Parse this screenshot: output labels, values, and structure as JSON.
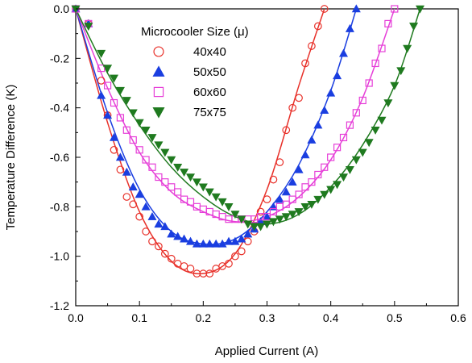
{
  "chart_data": {
    "type": "scatter",
    "xlabel": "Applied Current (A)",
    "ylabel": "Temperature Difference (K)",
    "xlim": [
      0.0,
      0.6
    ],
    "ylim": [
      -1.2,
      0.0
    ],
    "xticks": [
      "0.0",
      "0.1",
      "0.2",
      "0.3",
      "0.4",
      "0.5",
      "0.6"
    ],
    "yticks": [
      "0.0",
      "-0.2",
      "-0.4",
      "-0.6",
      "-0.8",
      "-1.0",
      "-1.2"
    ],
    "grid": false,
    "legend": {
      "title": "Microcooler Size (μ)",
      "placement": "top-center"
    },
    "series": [
      {
        "name": "40x40",
        "marker": "circle-open",
        "color": "#e8312a",
        "points": [
          [
            0.0,
            0.0
          ],
          [
            0.02,
            -0.06
          ],
          [
            0.04,
            -0.29
          ],
          [
            0.05,
            -0.43
          ],
          [
            0.06,
            -0.57
          ],
          [
            0.07,
            -0.65
          ],
          [
            0.08,
            -0.76
          ],
          [
            0.09,
            -0.79
          ],
          [
            0.1,
            -0.84
          ],
          [
            0.11,
            -0.9
          ],
          [
            0.12,
            -0.94
          ],
          [
            0.13,
            -0.96
          ],
          [
            0.14,
            -0.99
          ],
          [
            0.15,
            -1.01
          ],
          [
            0.16,
            -1.03
          ],
          [
            0.17,
            -1.04
          ],
          [
            0.18,
            -1.05
          ],
          [
            0.19,
            -1.07
          ],
          [
            0.2,
            -1.07
          ],
          [
            0.21,
            -1.07
          ],
          [
            0.22,
            -1.05
          ],
          [
            0.23,
            -1.04
          ],
          [
            0.24,
            -1.03
          ],
          [
            0.25,
            -1.0
          ],
          [
            0.26,
            -0.98
          ],
          [
            0.27,
            -0.94
          ],
          [
            0.28,
            -0.9
          ],
          [
            0.29,
            -0.82
          ],
          [
            0.3,
            -0.77
          ],
          [
            0.31,
            -0.69
          ],
          [
            0.32,
            -0.62
          ],
          [
            0.33,
            -0.49
          ],
          [
            0.34,
            -0.4
          ],
          [
            0.35,
            -0.36
          ],
          [
            0.36,
            -0.22
          ],
          [
            0.37,
            -0.15
          ],
          [
            0.38,
            -0.07
          ],
          [
            0.39,
            0.0
          ]
        ],
        "fit": [
          [
            0.0,
            0.0
          ],
          [
            0.05,
            -0.46
          ],
          [
            0.1,
            -0.82
          ],
          [
            0.15,
            -1.02
          ],
          [
            0.2,
            -1.07
          ],
          [
            0.25,
            -0.99
          ],
          [
            0.3,
            -0.73
          ],
          [
            0.35,
            -0.31
          ],
          [
            0.39,
            0.0
          ]
        ]
      },
      {
        "name": "50x50",
        "marker": "triangle-up",
        "color": "#1a3ee0",
        "points": [
          [
            0.0,
            0.0
          ],
          [
            0.02,
            -0.06
          ],
          [
            0.04,
            -0.35
          ],
          [
            0.05,
            -0.43
          ],
          [
            0.06,
            -0.52
          ],
          [
            0.07,
            -0.6
          ],
          [
            0.08,
            -0.66
          ],
          [
            0.09,
            -0.72
          ],
          [
            0.1,
            -0.75
          ],
          [
            0.11,
            -0.8
          ],
          [
            0.12,
            -0.84
          ],
          [
            0.13,
            -0.87
          ],
          [
            0.14,
            -0.88
          ],
          [
            0.15,
            -0.91
          ],
          [
            0.16,
            -0.92
          ],
          [
            0.17,
            -0.93
          ],
          [
            0.18,
            -0.94
          ],
          [
            0.19,
            -0.95
          ],
          [
            0.2,
            -0.95
          ],
          [
            0.21,
            -0.95
          ],
          [
            0.22,
            -0.95
          ],
          [
            0.23,
            -0.95
          ],
          [
            0.24,
            -0.94
          ],
          [
            0.25,
            -0.94
          ],
          [
            0.26,
            -0.93
          ],
          [
            0.27,
            -0.91
          ],
          [
            0.28,
            -0.89
          ],
          [
            0.29,
            -0.86
          ],
          [
            0.3,
            -0.84
          ],
          [
            0.31,
            -0.8
          ],
          [
            0.32,
            -0.77
          ],
          [
            0.33,
            -0.74
          ],
          [
            0.34,
            -0.7
          ],
          [
            0.35,
            -0.65
          ],
          [
            0.36,
            -0.59
          ],
          [
            0.37,
            -0.53
          ],
          [
            0.38,
            -0.47
          ],
          [
            0.39,
            -0.41
          ],
          [
            0.4,
            -0.34
          ],
          [
            0.41,
            -0.27
          ],
          [
            0.42,
            -0.18
          ],
          [
            0.43,
            -0.08
          ],
          [
            0.44,
            0.0
          ]
        ],
        "fit": [
          [
            0.0,
            0.0
          ],
          [
            0.05,
            -0.42
          ],
          [
            0.1,
            -0.73
          ],
          [
            0.15,
            -0.9
          ],
          [
            0.2,
            -0.95
          ],
          [
            0.25,
            -0.93
          ],
          [
            0.3,
            -0.82
          ],
          [
            0.35,
            -0.63
          ],
          [
            0.4,
            -0.33
          ],
          [
            0.44,
            0.0
          ]
        ]
      },
      {
        "name": "60x60",
        "marker": "square-open",
        "color": "#e63fd8",
        "points": [
          [
            0.0,
            0.0
          ],
          [
            0.02,
            -0.06
          ],
          [
            0.04,
            -0.24
          ],
          [
            0.05,
            -0.31
          ],
          [
            0.06,
            -0.38
          ],
          [
            0.07,
            -0.44
          ],
          [
            0.08,
            -0.49
          ],
          [
            0.09,
            -0.53
          ],
          [
            0.1,
            -0.57
          ],
          [
            0.11,
            -0.61
          ],
          [
            0.12,
            -0.64
          ],
          [
            0.13,
            -0.68
          ],
          [
            0.14,
            -0.7
          ],
          [
            0.15,
            -0.72
          ],
          [
            0.16,
            -0.74
          ],
          [
            0.17,
            -0.77
          ],
          [
            0.18,
            -0.78
          ],
          [
            0.19,
            -0.8
          ],
          [
            0.2,
            -0.81
          ],
          [
            0.21,
            -0.82
          ],
          [
            0.22,
            -0.83
          ],
          [
            0.23,
            -0.84
          ],
          [
            0.24,
            -0.85
          ],
          [
            0.25,
            -0.85
          ],
          [
            0.26,
            -0.85
          ],
          [
            0.27,
            -0.85
          ],
          [
            0.28,
            -0.85
          ],
          [
            0.29,
            -0.84
          ],
          [
            0.3,
            -0.84
          ],
          [
            0.31,
            -0.82
          ],
          [
            0.32,
            -0.8
          ],
          [
            0.33,
            -0.79
          ],
          [
            0.34,
            -0.77
          ],
          [
            0.35,
            -0.75
          ],
          [
            0.36,
            -0.72
          ],
          [
            0.37,
            -0.7
          ],
          [
            0.38,
            -0.67
          ],
          [
            0.39,
            -0.64
          ],
          [
            0.4,
            -0.6
          ],
          [
            0.41,
            -0.56
          ],
          [
            0.42,
            -0.52
          ],
          [
            0.43,
            -0.47
          ],
          [
            0.44,
            -0.42
          ],
          [
            0.45,
            -0.37
          ],
          [
            0.46,
            -0.3
          ],
          [
            0.47,
            -0.22
          ],
          [
            0.48,
            -0.16
          ],
          [
            0.49,
            -0.06
          ],
          [
            0.5,
            0.0
          ]
        ],
        "fit": [
          [
            0.0,
            0.0
          ],
          [
            0.05,
            -0.32
          ],
          [
            0.1,
            -0.58
          ],
          [
            0.15,
            -0.74
          ],
          [
            0.2,
            -0.82
          ],
          [
            0.25,
            -0.86
          ],
          [
            0.3,
            -0.84
          ],
          [
            0.35,
            -0.76
          ],
          [
            0.4,
            -0.61
          ],
          [
            0.45,
            -0.36
          ],
          [
            0.5,
            0.0
          ]
        ]
      },
      {
        "name": "75x75",
        "marker": "triangle-down",
        "color": "#1f7a1f",
        "points": [
          [
            0.0,
            0.0
          ],
          [
            0.02,
            -0.07
          ],
          [
            0.04,
            -0.18
          ],
          [
            0.05,
            -0.24
          ],
          [
            0.06,
            -0.28
          ],
          [
            0.07,
            -0.33
          ],
          [
            0.08,
            -0.37
          ],
          [
            0.09,
            -0.42
          ],
          [
            0.1,
            -0.46
          ],
          [
            0.11,
            -0.49
          ],
          [
            0.12,
            -0.52
          ],
          [
            0.13,
            -0.55
          ],
          [
            0.14,
            -0.58
          ],
          [
            0.15,
            -0.61
          ],
          [
            0.16,
            -0.64
          ],
          [
            0.17,
            -0.66
          ],
          [
            0.18,
            -0.68
          ],
          [
            0.19,
            -0.7
          ],
          [
            0.2,
            -0.72
          ],
          [
            0.21,
            -0.74
          ],
          [
            0.22,
            -0.76
          ],
          [
            0.23,
            -0.78
          ],
          [
            0.24,
            -0.8
          ],
          [
            0.25,
            -0.83
          ],
          [
            0.26,
            -0.85
          ],
          [
            0.27,
            -0.87
          ],
          [
            0.28,
            -0.88
          ],
          [
            0.29,
            -0.88
          ],
          [
            0.3,
            -0.87
          ],
          [
            0.31,
            -0.86
          ],
          [
            0.32,
            -0.85
          ],
          [
            0.33,
            -0.84
          ],
          [
            0.34,
            -0.83
          ],
          [
            0.35,
            -0.82
          ],
          [
            0.36,
            -0.8
          ],
          [
            0.37,
            -0.79
          ],
          [
            0.38,
            -0.77
          ],
          [
            0.39,
            -0.75
          ],
          [
            0.4,
            -0.73
          ],
          [
            0.41,
            -0.71
          ],
          [
            0.42,
            -0.68
          ],
          [
            0.43,
            -0.65
          ],
          [
            0.44,
            -0.61
          ],
          [
            0.45,
            -0.58
          ],
          [
            0.46,
            -0.54
          ],
          [
            0.47,
            -0.49
          ],
          [
            0.48,
            -0.45
          ],
          [
            0.49,
            -0.38
          ],
          [
            0.5,
            -0.31
          ],
          [
            0.51,
            -0.25
          ],
          [
            0.52,
            -0.16
          ],
          [
            0.53,
            -0.07
          ],
          [
            0.54,
            0.0
          ]
        ],
        "fit": [
          [
            0.0,
            0.0
          ],
          [
            0.05,
            -0.26
          ],
          [
            0.1,
            -0.47
          ],
          [
            0.15,
            -0.64
          ],
          [
            0.2,
            -0.76
          ],
          [
            0.25,
            -0.84
          ],
          [
            0.3,
            -0.87
          ],
          [
            0.35,
            -0.83
          ],
          [
            0.4,
            -0.72
          ],
          [
            0.45,
            -0.55
          ],
          [
            0.5,
            -0.31
          ],
          [
            0.54,
            0.0
          ]
        ]
      }
    ]
  }
}
